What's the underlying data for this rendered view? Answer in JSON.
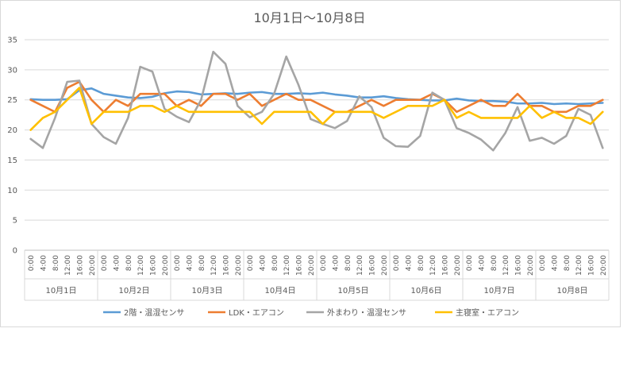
{
  "chart_data": {
    "type": "line",
    "title": "10月1日～10月8日",
    "ylim": [
      0,
      35
    ],
    "yticks": [
      0,
      5,
      10,
      15,
      20,
      25,
      30,
      35
    ],
    "grid": true,
    "legend_position": "bottom",
    "hour_labels": [
      "0:00",
      "4:00",
      "8:00",
      "12:00",
      "16:00",
      "20:00"
    ],
    "days": [
      "10月1日",
      "10月2日",
      "10月3日",
      "10月4日",
      "10月5日",
      "10月6日",
      "10月7日",
      "10月8日"
    ],
    "series": [
      {
        "name": "2階・温湿センサ",
        "color": "#5B9BD5",
        "values": [
          25.1,
          25.0,
          25.0,
          25.1,
          26.6,
          26.9,
          26.0,
          25.7,
          25.4,
          25.3,
          25.5,
          26.1,
          26.4,
          26.3,
          25.9,
          26.0,
          26.1,
          26.0,
          26.2,
          26.3,
          26.0,
          26.0,
          26.1,
          26.0,
          26.2,
          25.9,
          25.7,
          25.4,
          25.4,
          25.6,
          25.3,
          25.1,
          25.0,
          24.9,
          24.9,
          25.2,
          24.9,
          24.8,
          24.8,
          24.7,
          24.4,
          24.4,
          24.5,
          24.3,
          24.4,
          24.3,
          24.4,
          24.5
        ]
      },
      {
        "name": "LDK・エアコン",
        "color": "#ED7D31",
        "values": [
          25.0,
          24.0,
          23.0,
          27.0,
          28.0,
          25.0,
          23.0,
          25.0,
          24.0,
          26.0,
          26.0,
          26.0,
          24.0,
          25.0,
          24.0,
          26.0,
          26.0,
          25.0,
          26.0,
          24.0,
          25.0,
          26.0,
          25.0,
          25.0,
          24.0,
          23.0,
          23.0,
          24.0,
          25.0,
          24.0,
          25.0,
          25.0,
          25.0,
          26.0,
          25.0,
          23.0,
          24.0,
          25.0,
          24.0,
          24.0,
          26.0,
          24.0,
          24.0,
          23.0,
          23.0,
          24.0,
          24.0,
          25.0
        ]
      },
      {
        "name": "外まわり・温湿センサ",
        "color": "#A5A5A5",
        "values": [
          18.5,
          17.0,
          22.0,
          28.0,
          28.2,
          21.0,
          18.8,
          17.7,
          22.0,
          30.5,
          29.7,
          23.5,
          22.2,
          21.3,
          25.0,
          33.0,
          31.0,
          24.0,
          22.1,
          23.0,
          26.0,
          32.2,
          27.5,
          21.8,
          21.0,
          20.3,
          21.5,
          25.6,
          23.8,
          18.7,
          17.3,
          17.2,
          19.0,
          26.2,
          25.0,
          20.3,
          19.5,
          18.4,
          16.6,
          19.5,
          23.8,
          18.2,
          18.7,
          17.7,
          19.0,
          23.5,
          22.5,
          17.0
        ]
      },
      {
        "name": "主寝室・エアコン",
        "color": "#FFC000",
        "values": [
          20.0,
          22.0,
          23.0,
          25.0,
          27.0,
          21.0,
          23.0,
          23.0,
          23.0,
          24.0,
          24.0,
          23.0,
          24.0,
          23.0,
          23.0,
          23.0,
          23.0,
          23.0,
          23.0,
          21.0,
          23.0,
          23.0,
          23.0,
          23.0,
          21.0,
          23.0,
          23.0,
          23.0,
          23.0,
          22.0,
          23.0,
          24.0,
          24.0,
          24.0,
          25.0,
          22.0,
          23.0,
          22.0,
          22.0,
          22.0,
          22.0,
          24.0,
          22.0,
          23.0,
          22.0,
          22.0,
          21.0,
          23.0
        ]
      }
    ]
  }
}
